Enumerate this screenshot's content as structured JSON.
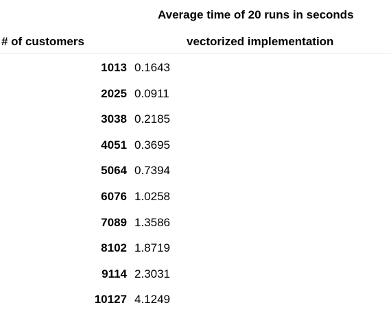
{
  "table": {
    "column_group_title": "Average time of 20 runs in seconds",
    "index_name": "# of customers",
    "column_name": "vectorized implementation",
    "rows": [
      {
        "customers": "1013",
        "time": "0.1643"
      },
      {
        "customers": "2025",
        "time": "0.0911"
      },
      {
        "customers": "3038",
        "time": "0.2185"
      },
      {
        "customers": "4051",
        "time": "0.3695"
      },
      {
        "customers": "5064",
        "time": "0.7394"
      },
      {
        "customers": "6076",
        "time": "1.0258"
      },
      {
        "customers": "7089",
        "time": "1.3586"
      },
      {
        "customers": "8102",
        "time": "1.8719"
      },
      {
        "customers": "9114",
        "time": "2.3031"
      },
      {
        "customers": "10127",
        "time": "4.1249"
      }
    ]
  }
}
